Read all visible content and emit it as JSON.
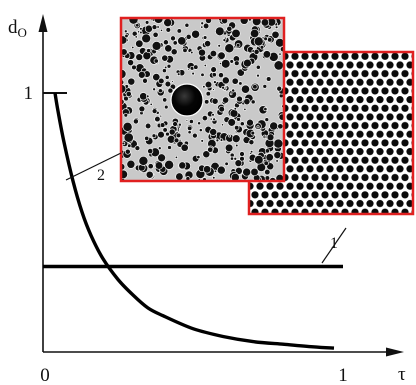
{
  "chart_data": {
    "type": "line",
    "xlabel": "τ",
    "ylabel": "d",
    "ylabel_subscript": "O",
    "xlim": [
      0,
      1.05
    ],
    "ylim": [
      0,
      1.1
    ],
    "x_ticks": [
      {
        "value": 0,
        "label": "0"
      },
      {
        "value": 1,
        "label": "1"
      }
    ],
    "y_ticks": [
      {
        "value": 1,
        "label": "1"
      }
    ],
    "grid": false,
    "legend": "none",
    "series": [
      {
        "id": "1",
        "callout": "1",
        "color": "#000000",
        "x": [
          0.0,
          1.0
        ],
        "y": [
          0.33,
          0.33
        ]
      },
      {
        "id": "2",
        "callout": "2",
        "color": "#000000",
        "x": [
          0.04,
          0.05,
          0.07,
          0.1,
          0.13,
          0.16,
          0.2,
          0.25,
          0.3,
          0.35,
          0.4,
          0.5,
          0.6,
          0.7,
          0.8,
          0.9,
          0.97
        ],
        "y": [
          1.0,
          0.93,
          0.81,
          0.66,
          0.54,
          0.45,
          0.36,
          0.28,
          0.22,
          0.17,
          0.14,
          0.09,
          0.06,
          0.04,
          0.03,
          0.02,
          0.015
        ]
      }
    ],
    "insets": [
      {
        "name": "foam-micrograph",
        "series": "2",
        "border_color": "#e02020"
      },
      {
        "name": "ordered-bubble-array",
        "series": "1",
        "border_color": "#e02020"
      }
    ]
  }
}
